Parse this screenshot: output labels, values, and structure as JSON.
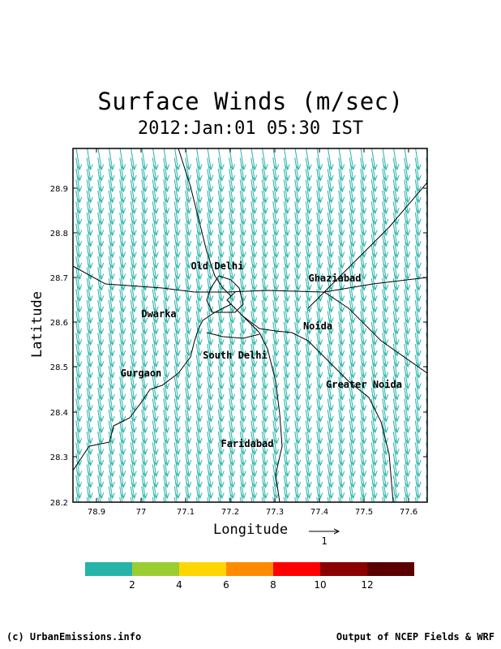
{
  "title": "Surface Winds (m/sec)",
  "subtitle": "2012:Jan:01 05:30 IST",
  "axes": {
    "xlabel": "Longitude",
    "ylabel": "Latitude",
    "x_ticks": [
      "78.9",
      "77",
      "77.1",
      "77.2",
      "77.3",
      "77.4",
      "77.5",
      "77.6"
    ],
    "y_ticks": [
      "28.9",
      "28.8",
      "28.7",
      "28.6",
      "28.5",
      "28.4",
      "28.3",
      "28.2"
    ]
  },
  "reference_vector": {
    "label": "1"
  },
  "cities": [
    {
      "name": "Old Delhi",
      "lon": 77.17,
      "lat": 28.715
    },
    {
      "name": "Ghaziabad",
      "lon": 77.42,
      "lat": 28.69
    },
    {
      "name": "Dwarka",
      "lon": 77.04,
      "lat": 28.62
    },
    {
      "name": "Noida",
      "lon": 77.37,
      "lat": 28.6
    },
    {
      "name": "South Delhi",
      "lon": 77.23,
      "lat": 28.545
    },
    {
      "name": "Gurgaon",
      "lon": 77.0,
      "lat": 28.49
    },
    {
      "name": "Greater Noida",
      "lon": 77.49,
      "lat": 28.46
    },
    {
      "name": "Faridabad",
      "lon": 77.27,
      "lat": 28.33
    }
  ],
  "colorbar": {
    "colors": [
      "#26b3aa",
      "#9acd32",
      "#ffd700",
      "#ff8c00",
      "#ff0000",
      "#8b0000",
      "#5a0000",
      "#2b0000"
    ],
    "labels": [
      "2",
      "4",
      "6",
      "8",
      "10",
      "12"
    ]
  },
  "wind_color": "#26b3aa",
  "footer": {
    "left": "(c) UrbanEmissions.info",
    "right": "Output of NCEP Fields & WRF"
  }
}
